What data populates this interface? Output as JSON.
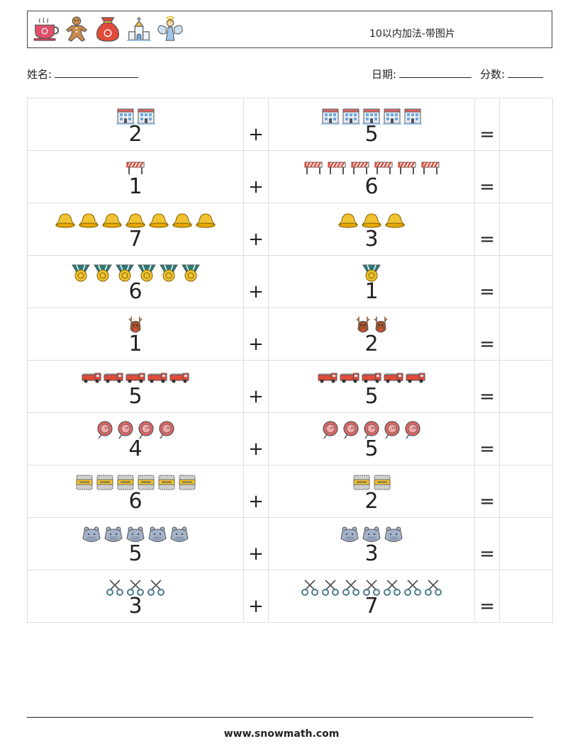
{
  "header": {
    "title": "10以内加法-带图片",
    "icons": [
      "tea-cup-icon",
      "gingerbread-man-icon",
      "gift-sack-icon",
      "church-icon",
      "angel-icon"
    ]
  },
  "info": {
    "name_label": "姓名:",
    "date_label": "日期:",
    "score_label": "分数:"
  },
  "operators": {
    "plus": "+",
    "equals": "="
  },
  "problems": [
    {
      "icon": "building-icon",
      "a": "2",
      "b": "5"
    },
    {
      "icon": "road-barrier-icon",
      "a": "1",
      "b": "6"
    },
    {
      "icon": "bell-icon",
      "a": "7",
      "b": "3"
    },
    {
      "icon": "medal-icon",
      "a": "6",
      "b": "1"
    },
    {
      "icon": "reindeer-icon",
      "a": "1",
      "b": "2"
    },
    {
      "icon": "fire-truck-icon",
      "a": "5",
      "b": "5"
    },
    {
      "icon": "lollipop-icon",
      "a": "4",
      "b": "5"
    },
    {
      "icon": "cement-bag-icon",
      "a": "6",
      "b": "2"
    },
    {
      "icon": "hippo-icon",
      "a": "5",
      "b": "3"
    },
    {
      "icon": "scissors-icon",
      "a": "3",
      "b": "7"
    }
  ],
  "footer": {
    "url": "www.snowmath.com"
  }
}
